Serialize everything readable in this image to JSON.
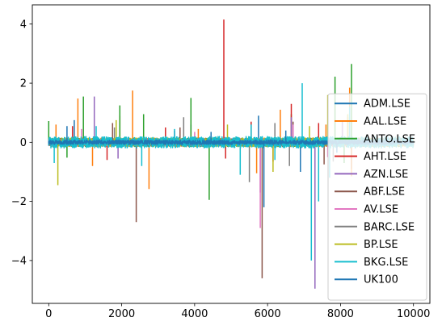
{
  "chart_data": {
    "type": "line",
    "title": "",
    "xlabel": "",
    "ylabel": "",
    "xlim": [
      -450,
      10450
    ],
    "ylim": [
      -5.45,
      4.65
    ],
    "xticks": [
      0,
      2000,
      4000,
      6000,
      8000,
      10000
    ],
    "yticks": [
      -4,
      -2,
      0,
      2,
      4
    ],
    "xtick_labels": [
      "0",
      "2000",
      "4000",
      "6000",
      "8000",
      "10000"
    ],
    "ytick_labels": [
      "−4",
      "−2",
      "0",
      "2",
      "4"
    ],
    "legend_position": "lower-right",
    "n_points": 10000,
    "series": [
      {
        "name": "ADM.LSE",
        "color": "#1f77b4",
        "base_sd": 0.05,
        "spikes": [
          [
            700,
            0.75
          ],
          [
            3900,
            0.6
          ],
          [
            5750,
            0.9
          ],
          [
            6900,
            -1.0
          ],
          [
            8050,
            0.7
          ],
          [
            8300,
            -0.9
          ]
        ]
      },
      {
        "name": "AAL.LSE",
        "color": "#ff7f0e",
        "base_sd": 0.06,
        "spikes": [
          [
            200,
            0.6
          ],
          [
            800,
            1.48
          ],
          [
            1200,
            -0.8
          ],
          [
            1950,
            0.9
          ],
          [
            2300,
            1.75
          ],
          [
            2750,
            -1.58
          ],
          [
            4100,
            0.45
          ],
          [
            5700,
            -1.05
          ],
          [
            6350,
            1.1
          ],
          [
            7600,
            0.6
          ],
          [
            8250,
            1.85
          ],
          [
            8300,
            -1.15
          ]
        ]
      },
      {
        "name": "ANTO.LSE",
        "color": "#2ca02c",
        "base_sd": 0.06,
        "spikes": [
          [
            0,
            0.72
          ],
          [
            500,
            -0.52
          ],
          [
            950,
            1.55
          ],
          [
            1950,
            1.25
          ],
          [
            2600,
            0.95
          ],
          [
            3900,
            1.5
          ],
          [
            4400,
            -1.95
          ],
          [
            5550,
            0.65
          ],
          [
            6650,
            0.95
          ],
          [
            7850,
            2.22
          ],
          [
            8300,
            2.65
          ],
          [
            8100,
            -0.7
          ]
        ]
      },
      {
        "name": "AHT.LSE",
        "color": "#d62728",
        "base_sd": 0.05,
        "spikes": [
          [
            650,
            0.55
          ],
          [
            1600,
            -0.6
          ],
          [
            3200,
            0.5
          ],
          [
            4800,
            4.15
          ],
          [
            4850,
            -0.55
          ],
          [
            5550,
            0.7
          ],
          [
            6150,
            -0.65
          ],
          [
            6650,
            1.3
          ],
          [
            7400,
            0.65
          ],
          [
            8200,
            0.85
          ]
        ]
      },
      {
        "name": "AZN.LSE",
        "color": "#9467bd",
        "base_sd": 0.05,
        "spikes": [
          [
            1250,
            1.55
          ],
          [
            1900,
            -0.55
          ],
          [
            3450,
            0.4
          ],
          [
            5800,
            -1.7
          ],
          [
            6650,
            0.85
          ],
          [
            7300,
            -4.95
          ],
          [
            8050,
            0.7
          ]
        ]
      },
      {
        "name": "ABF.LSE",
        "color": "#8c564b",
        "base_sd": 0.05,
        "spikes": [
          [
            1750,
            0.65
          ],
          [
            2400,
            -2.7
          ],
          [
            3600,
            0.5
          ],
          [
            5850,
            -4.6
          ],
          [
            6700,
            0.7
          ],
          [
            7550,
            -0.75
          ]
        ]
      },
      {
        "name": "AV.LSE",
        "color": "#e377c2",
        "base_sd": 0.05,
        "spikes": [
          [
            900,
            0.45
          ],
          [
            4000,
            0.35
          ],
          [
            5800,
            -2.9
          ],
          [
            6700,
            0.6
          ],
          [
            7650,
            -0.5
          ]
        ]
      },
      {
        "name": "BARC.LSE",
        "color": "#7f7f7f",
        "base_sd": 0.05,
        "spikes": [
          [
            1800,
            0.5
          ],
          [
            3700,
            0.85
          ],
          [
            5500,
            -1.35
          ],
          [
            6200,
            0.65
          ],
          [
            6600,
            -0.8
          ],
          [
            7800,
            -0.65
          ]
        ]
      },
      {
        "name": "BP.LSE",
        "color": "#bcbd22",
        "base_sd": 0.06,
        "spikes": [
          [
            250,
            -1.45
          ],
          [
            1850,
            0.75
          ],
          [
            4900,
            0.6
          ],
          [
            6150,
            -1.0
          ],
          [
            7150,
            0.55
          ],
          [
            7650,
            1.6
          ],
          [
            8200,
            0.95
          ]
        ]
      },
      {
        "name": "BKG.LSE",
        "color": "#17becf",
        "base_sd": 0.08,
        "spikes": [
          [
            150,
            -0.7
          ],
          [
            1300,
            0.55
          ],
          [
            2550,
            -0.8
          ],
          [
            3450,
            0.45
          ],
          [
            5250,
            -1.1
          ],
          [
            5550,
            0.6
          ],
          [
            6200,
            -0.6
          ],
          [
            6950,
            2.0
          ],
          [
            7200,
            -4.0
          ],
          [
            7400,
            -2.0
          ],
          [
            7700,
            -1.2
          ],
          [
            8250,
            1.2
          ]
        ]
      },
      {
        "name": "UK100",
        "color": "#1f77b4",
        "base_sd": 0.03,
        "spikes": [
          [
            500,
            0.55
          ],
          [
            4450,
            0.35
          ],
          [
            5900,
            -2.2
          ],
          [
            6500,
            0.4
          ],
          [
            7900,
            -0.35
          ]
        ]
      }
    ]
  }
}
